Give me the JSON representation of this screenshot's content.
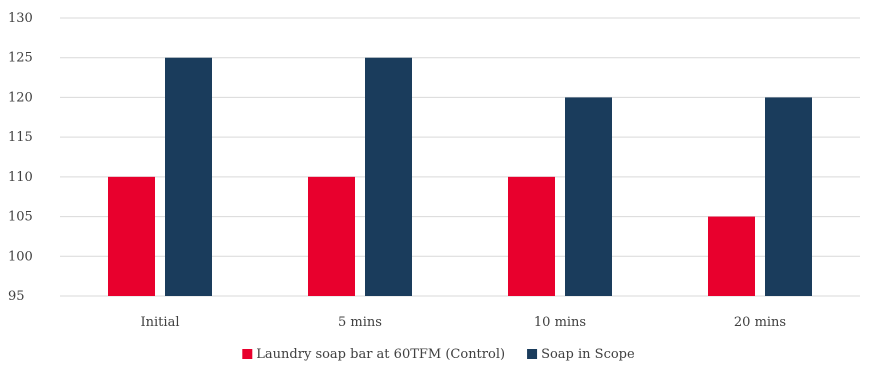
{
  "chart_data": {
    "type": "bar",
    "title": "",
    "xlabel": "",
    "ylabel": "",
    "categories": [
      "Initial",
      "5 mins",
      "10 mins",
      "20 mins"
    ],
    "ylim": [
      95,
      130
    ],
    "yticks": [
      95,
      100,
      105,
      110,
      115,
      120,
      125,
      130
    ],
    "ytick_labels": [
      "95",
      "100",
      "105",
      "110",
      "115",
      "120",
      "125",
      "130"
    ],
    "grid": true,
    "legend_position": "bottom",
    "series": [
      {
        "name": "Laundry soap bar at 60TFM (Control)",
        "values": [
          110,
          110,
          110,
          105
        ],
        "color": "#e8002d"
      },
      {
        "name": "Soap in Scope",
        "values": [
          125,
          125,
          120,
          120
        ],
        "color": "#1a3c5c"
      }
    ]
  }
}
